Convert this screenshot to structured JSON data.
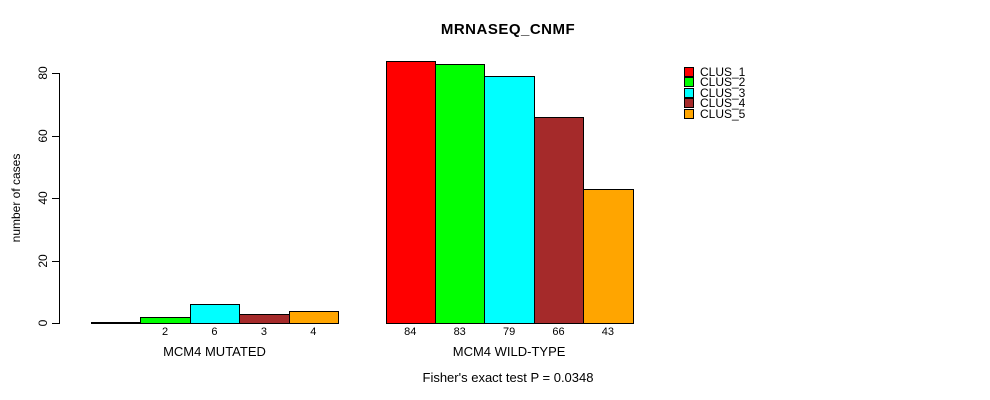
{
  "chart_data": {
    "type": "bar",
    "title": "MRNASEQ_CNMF",
    "ylabel": "number of cases",
    "xlabel": "",
    "categories": [
      "MCM4 MUTATED",
      "MCM4 WILD-TYPE"
    ],
    "series": [
      {
        "name": "CLUS_1",
        "color": "#ff0000",
        "values": [
          0,
          84
        ]
      },
      {
        "name": "CLUS_2",
        "color": "#00ff00",
        "values": [
          2,
          83
        ]
      },
      {
        "name": "CLUS_3",
        "color": "#00ffff",
        "values": [
          6,
          79
        ]
      },
      {
        "name": "CLUS_4",
        "color": "#a52a2a",
        "values": [
          3,
          66
        ]
      },
      {
        "name": "CLUS_5",
        "color": "#ffa500",
        "values": [
          4,
          43
        ]
      }
    ],
    "yticks": [
      0,
      20,
      40,
      60,
      80
    ],
    "ylim": [
      0,
      80
    ],
    "bar_value_labels": true,
    "zero_bars_unlabeled": true,
    "grid": false,
    "legend_position": "right",
    "footnote": "Fisher's exact test P = 0.0348",
    "background_color": "#ffffff",
    "text_color": "#000000",
    "axis_color": "#000000"
  }
}
